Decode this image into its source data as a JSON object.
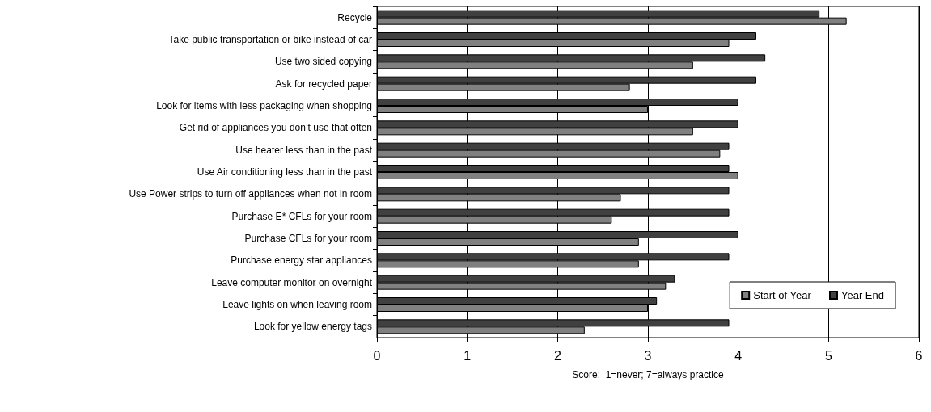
{
  "chart_data": {
    "type": "bar",
    "orientation": "horizontal",
    "categories": [
      "Recycle",
      "Take public transportation or bike instead of car",
      "Use two sided copying",
      "Ask for recycled paper",
      "Look for items with less packaging when shopping",
      "Get rid of appliances you don’t use that often",
      "Use heater less than in the past",
      "Use Air conditioning less than in the past",
      "Use Power strips to turn off appliances when not in room",
      "Purchase E* CFLs for your room",
      "Purchase CFLs for your room",
      "Purchase energy star appliances",
      "Leave computer monitor on overnight",
      "Leave lights on when leaving room",
      "Look for yellow energy tags"
    ],
    "series": [
      {
        "name": "Start of Year",
        "color": "#808080",
        "values": [
          5.2,
          3.9,
          3.5,
          2.8,
          3.0,
          3.5,
          3.8,
          4.0,
          2.7,
          2.6,
          2.9,
          2.9,
          3.2,
          3.0,
          2.3
        ]
      },
      {
        "name": "Year End",
        "color": "#404040",
        "values": [
          4.9,
          4.2,
          4.3,
          4.2,
          4.0,
          4.0,
          3.9,
          3.9,
          3.9,
          3.9,
          4.0,
          3.9,
          3.3,
          3.1,
          3.9
        ]
      }
    ],
    "xlabel": "Score:  1=never; 7=always practice",
    "xlim": [
      0,
      6
    ],
    "xticks": [
      0,
      1,
      2,
      3,
      4,
      5,
      6
    ],
    "grid": "x",
    "legend": "bottom right"
  }
}
